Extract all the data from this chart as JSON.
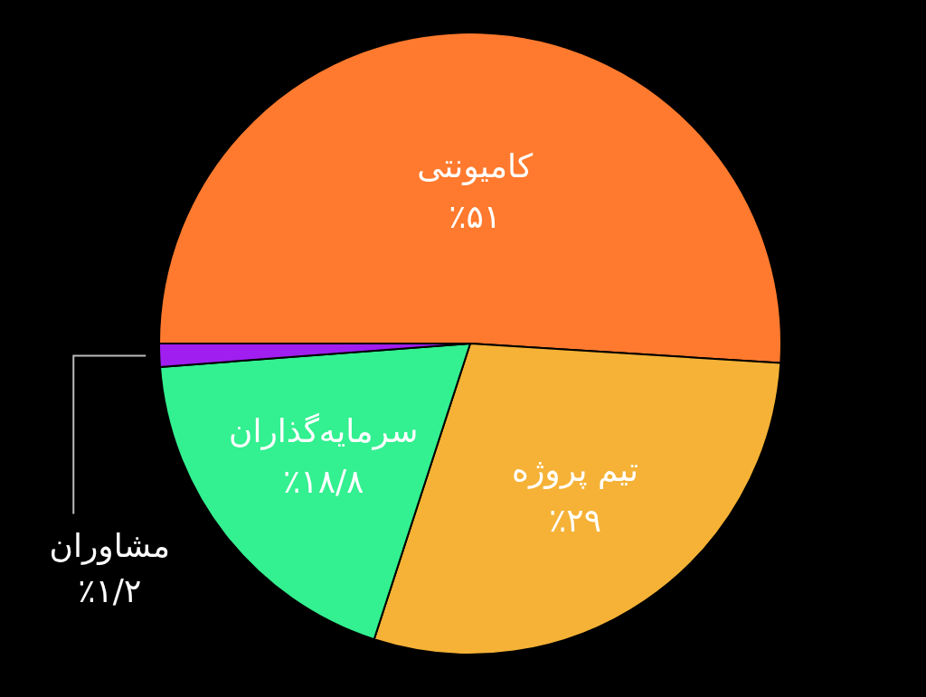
{
  "chart_data": {
    "type": "pie",
    "categories": [
      "کامیونتی",
      "تیم پروژه",
      "سرمایه‌گذاران",
      "مشاوران"
    ],
    "values": [
      51,
      29,
      18.8,
      1.2
    ],
    "colors": [
      "#ff7a2e",
      "#f5b236",
      "#33f090",
      "#a01ef0"
    ],
    "value_labels": [
      "٪۵۱",
      "٪۲۹",
      "٪۱۸/۸",
      "٪۱/۲"
    ]
  }
}
